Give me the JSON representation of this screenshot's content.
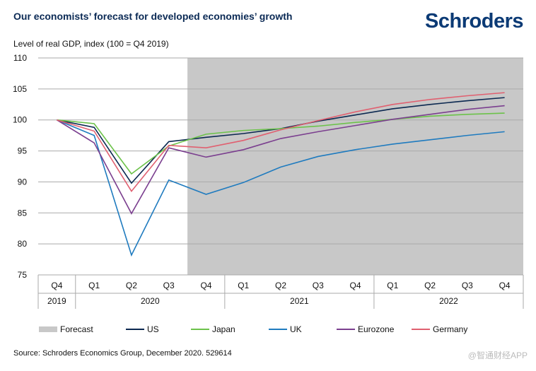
{
  "title": "Our economists’ forecast for developed economies’ growth",
  "logo": "Schroders",
  "source": "Source: Schroders Economics Group, December 2020. 529614",
  "watermark": "@智通财经APP",
  "chart_data": {
    "type": "line",
    "ylabel": "Level of real GDP, index (100 = Q4 2019)",
    "ylim": [
      75,
      110
    ],
    "yticks": [
      75,
      80,
      85,
      90,
      95,
      100,
      105,
      110
    ],
    "grid": true,
    "categories": [
      "Q4",
      "Q1",
      "Q2",
      "Q3",
      "Q4",
      "Q1",
      "Q2",
      "Q3",
      "Q4",
      "Q1",
      "Q2",
      "Q3",
      "Q4"
    ],
    "year_groups": [
      {
        "label": "2019",
        "span": 1
      },
      {
        "label": "2020",
        "span": 4
      },
      {
        "label": "2021",
        "span": 4
      },
      {
        "label": "2022",
        "span": 4
      }
    ],
    "forecast_region": {
      "label": "Forecast",
      "from_index": 3.5,
      "color": "#c8c8c8"
    },
    "legend_position": "bottom",
    "series": [
      {
        "name": "US",
        "color": "#0b2850",
        "values": [
          100,
          98.8,
          89.8,
          96.5,
          97.2,
          97.8,
          98.6,
          99.8,
          100.8,
          101.8,
          102.5,
          103.1,
          103.6
        ]
      },
      {
        "name": "Japan",
        "color": "#6cc24a",
        "values": [
          100,
          99.4,
          91.3,
          95.8,
          97.7,
          98.3,
          98.6,
          99.0,
          99.6,
          100.1,
          100.6,
          100.9,
          101.1
        ]
      },
      {
        "name": "UK",
        "color": "#1f7bbf",
        "values": [
          100,
          97.5,
          78.2,
          90.3,
          88.0,
          89.9,
          92.4,
          94.1,
          95.2,
          96.1,
          96.8,
          97.5,
          98.1
        ]
      },
      {
        "name": "Eurozone",
        "color": "#7b3f8f",
        "values": [
          100,
          96.3,
          84.9,
          95.5,
          94.0,
          95.2,
          97.0,
          98.1,
          99.1,
          100.1,
          100.9,
          101.7,
          102.3
        ]
      },
      {
        "name": "Germany",
        "color": "#e06070",
        "values": [
          100,
          98.2,
          88.5,
          95.9,
          95.5,
          96.7,
          98.4,
          99.9,
          101.3,
          102.5,
          103.3,
          103.9,
          104.4
        ]
      }
    ]
  }
}
